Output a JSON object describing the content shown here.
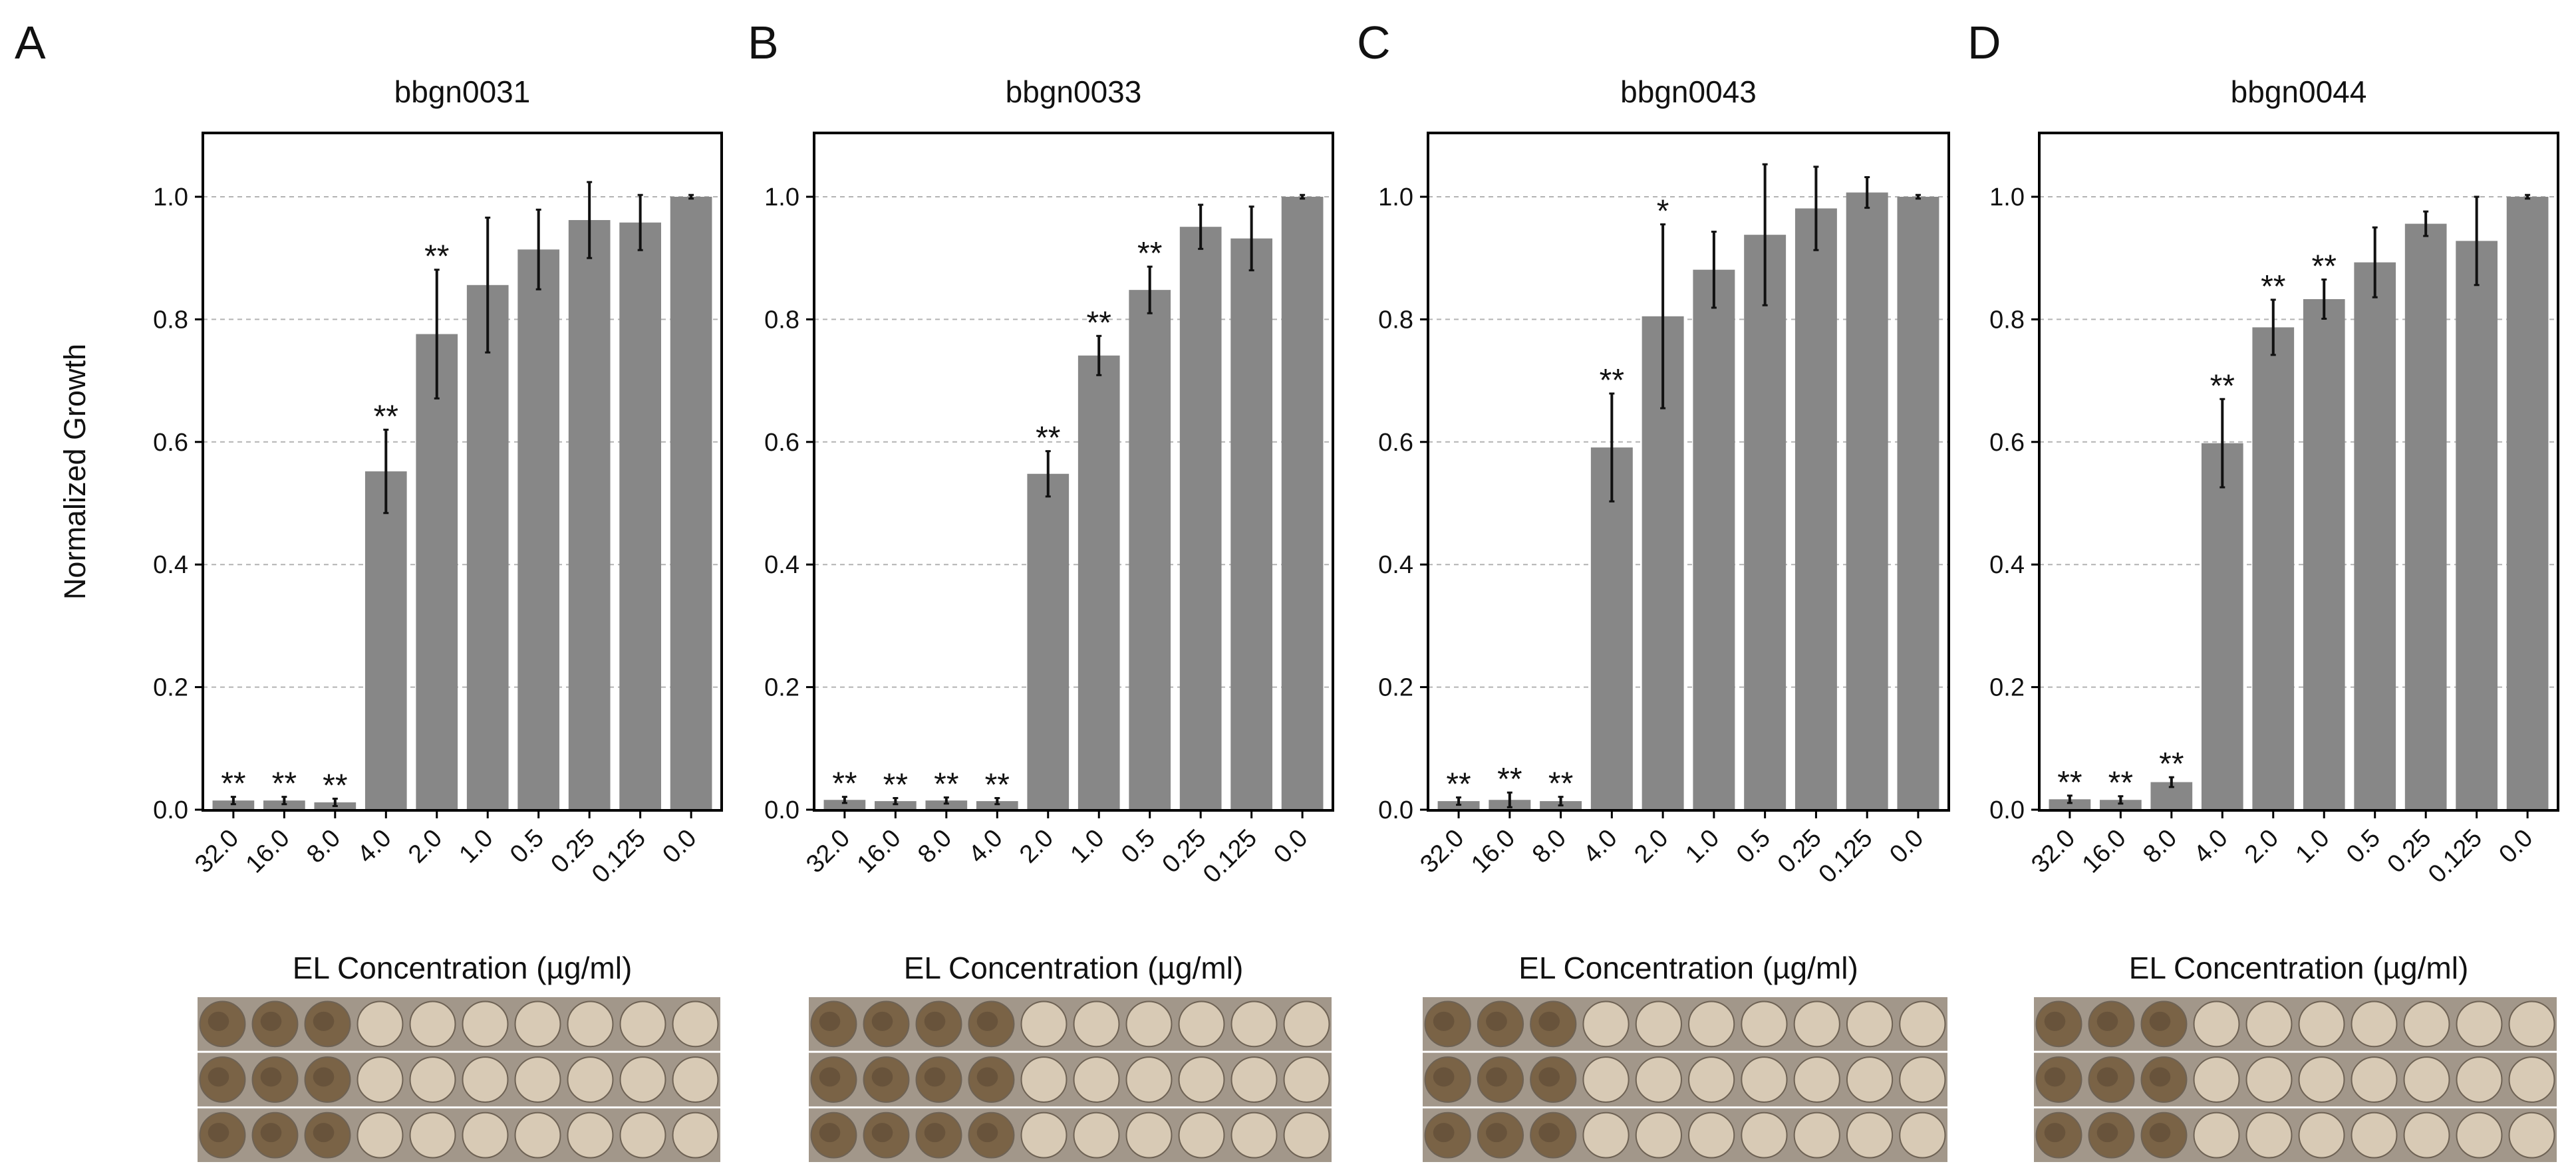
{
  "chart_data": [
    {
      "type": "bar",
      "panel": "A",
      "title": "bbgn0031",
      "ylabel": "Normalized Growth",
      "xlabel": "EL Concentration (µg/ml)",
      "ylim": [
        0,
        1.1
      ],
      "yticks": [
        "0.0",
        "0.2",
        "0.4",
        "0.6",
        "0.8",
        "1.0"
      ],
      "categories": [
        "32.0",
        "16.0",
        "8.0",
        "4.0",
        "2.0",
        "1.0",
        "0.5",
        "0.25",
        "0.125",
        "0.0"
      ],
      "values": [
        0.015,
        0.015,
        0.012,
        0.552,
        0.776,
        0.856,
        0.914,
        0.962,
        0.958,
        1.0
      ],
      "errors": [
        0.006,
        0.006,
        0.006,
        0.068,
        0.105,
        0.11,
        0.065,
        0.062,
        0.045,
        0.003
      ],
      "significance": [
        "**",
        "**",
        "**",
        "**",
        "**",
        "",
        "",
        "",
        "",
        ""
      ],
      "grid": "horizontal dashed at y ticks",
      "plate_photo": true
    },
    {
      "type": "bar",
      "panel": "B",
      "title": "bbgn0033",
      "ylabel": "",
      "xlabel": "EL Concentration (µg/ml)",
      "ylim": [
        0,
        1.1
      ],
      "yticks": [
        "0.0",
        "0.2",
        "0.4",
        "0.6",
        "0.8",
        "1.0"
      ],
      "categories": [
        "32.0",
        "16.0",
        "8.0",
        "4.0",
        "2.0",
        "1.0",
        "0.5",
        "0.25",
        "0.125",
        "0.0"
      ],
      "values": [
        0.016,
        0.014,
        0.015,
        0.014,
        0.548,
        0.741,
        0.848,
        0.951,
        0.932,
        1.0
      ],
      "errors": [
        0.005,
        0.005,
        0.005,
        0.005,
        0.037,
        0.032,
        0.038,
        0.036,
        0.052,
        0.003
      ],
      "significance": [
        "**",
        "**",
        "**",
        "**",
        "**",
        "**",
        "**",
        "",
        "",
        ""
      ],
      "grid": "horizontal dashed at y ticks",
      "plate_photo": true
    },
    {
      "type": "bar",
      "panel": "C",
      "title": "bbgn0043",
      "ylabel": "",
      "xlabel": "EL Concentration (µg/ml)",
      "ylim": [
        0,
        1.1
      ],
      "yticks": [
        "0.0",
        "0.2",
        "0.4",
        "0.6",
        "0.8",
        "1.0"
      ],
      "categories": [
        "32.0",
        "16.0",
        "8.0",
        "4.0",
        "2.0",
        "1.0",
        "0.5",
        "0.25",
        "0.125",
        "0.0"
      ],
      "values": [
        0.014,
        0.016,
        0.014,
        0.591,
        0.805,
        0.881,
        0.938,
        0.981,
        1.007,
        1.0
      ],
      "errors": [
        0.006,
        0.012,
        0.007,
        0.088,
        0.15,
        0.062,
        0.115,
        0.068,
        0.025,
        0.003
      ],
      "significance": [
        "**",
        "**",
        "**",
        "**",
        "*",
        "",
        "",
        "",
        "",
        ""
      ],
      "grid": "horizontal dashed at y ticks",
      "plate_photo": true
    },
    {
      "type": "bar",
      "panel": "D",
      "title": "bbgn0044",
      "ylabel": "",
      "xlabel": "EL Concentration (µg/ml)",
      "ylim": [
        0,
        1.1
      ],
      "yticks": [
        "0.0",
        "0.2",
        "0.4",
        "0.6",
        "0.8",
        "1.0"
      ],
      "categories": [
        "32.0",
        "16.0",
        "8.0",
        "4.0",
        "2.0",
        "1.0",
        "0.5",
        "0.25",
        "0.125",
        "0.0"
      ],
      "values": [
        0.017,
        0.016,
        0.045,
        0.598,
        0.787,
        0.833,
        0.893,
        0.956,
        0.928,
        1.0
      ],
      "errors": [
        0.006,
        0.006,
        0.008,
        0.072,
        0.045,
        0.032,
        0.057,
        0.02,
        0.072,
        0.003
      ],
      "significance": [
        "**",
        "**",
        "**",
        "**",
        "**",
        "**",
        "",
        "",
        "",
        ""
      ],
      "grid": "horizontal dashed at y ticks",
      "plate_photo": true
    }
  ],
  "colors": {
    "bar": "#878787",
    "error_bar": "#111111",
    "grid": "#b3b3b3",
    "axis": "#000000",
    "plate_bg": "#a2978a",
    "plate_frame": "#ffffff",
    "well_turbid": "#7a6346",
    "well_clear": "#d8cab5"
  }
}
